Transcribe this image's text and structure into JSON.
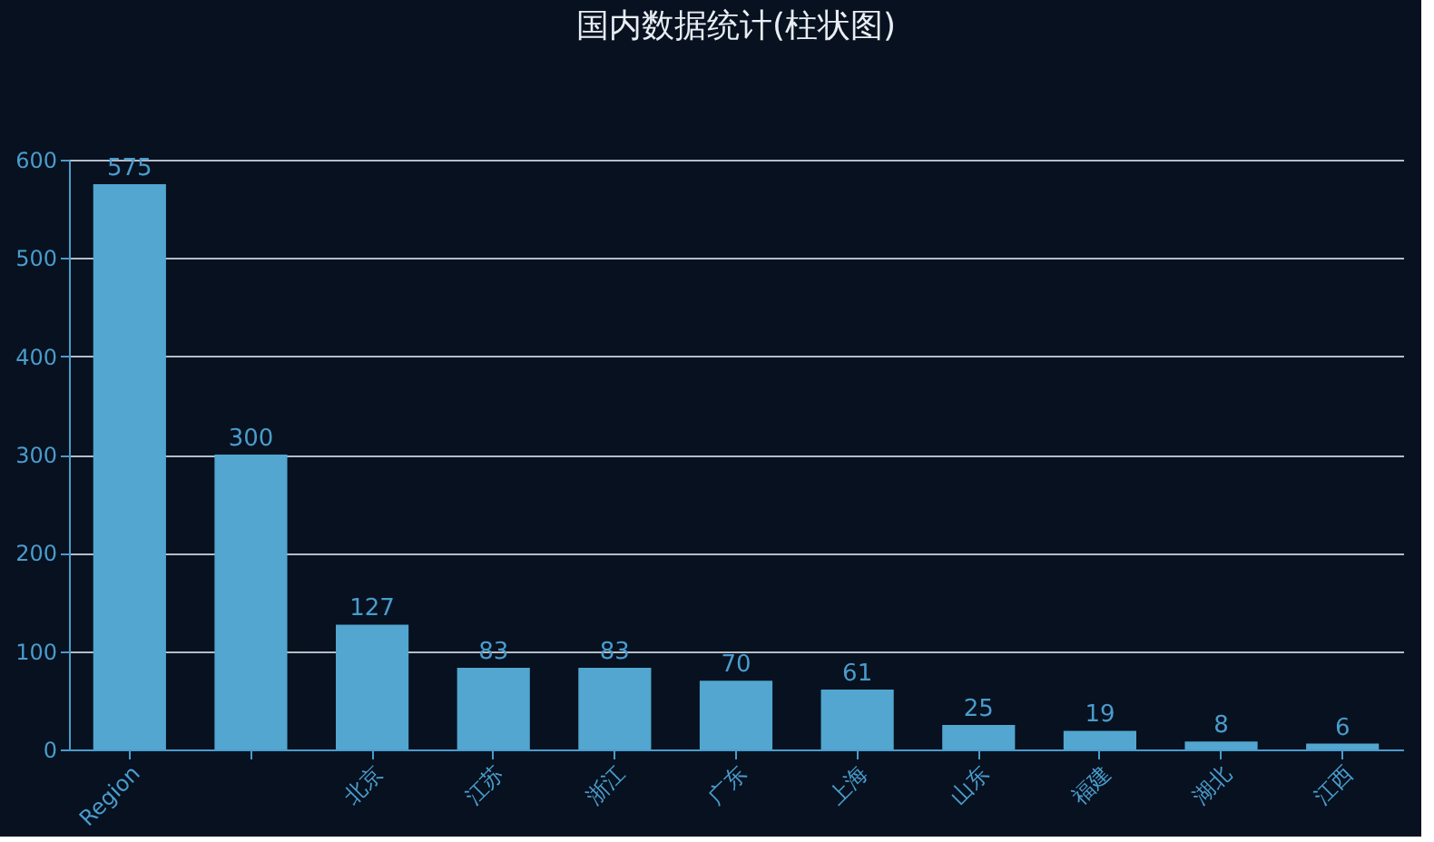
{
  "chart_data": {
    "type": "bar",
    "title": "国内数据统计(柱状图)",
    "categories": [
      "Region",
      null,
      "北京",
      "江苏",
      "浙江",
      "广东",
      "上海",
      "山东",
      "福建",
      "湖北",
      "江西"
    ],
    "values": [
      575,
      300,
      127,
      83,
      83,
      70,
      61,
      25,
      19,
      8,
      6
    ],
    "color": "#52a6d0",
    "ylim": [
      0,
      600
    ],
    "yticks": [
      0,
      100,
      200,
      300,
      400,
      500,
      600
    ],
    "grid": "y",
    "data_labels": true
  }
}
